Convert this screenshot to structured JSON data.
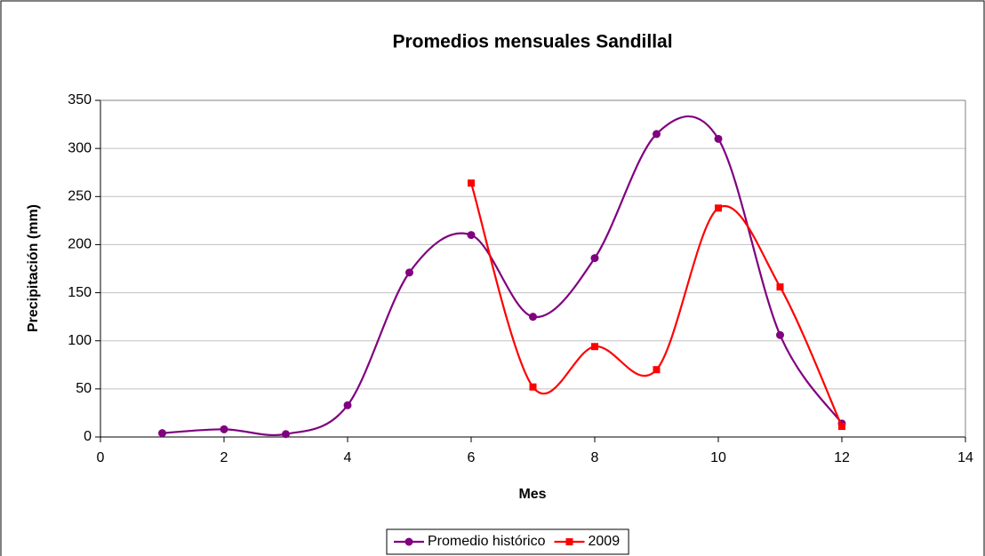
{
  "chart_data": {
    "type": "scatter-smooth",
    "title": "Promedios mensuales Sandillal",
    "xlabel": "Mes",
    "ylabel": "Precipitación (mm)",
    "xlim": [
      0,
      14
    ],
    "xticks": [
      0,
      2,
      4,
      6,
      8,
      10,
      12,
      14
    ],
    "ylim": [
      0,
      350
    ],
    "yticks": [
      0,
      50,
      100,
      150,
      200,
      250,
      300,
      350
    ],
    "grid": true,
    "legend": "bottom",
    "series": [
      {
        "name": "Promedio histórico",
        "color": "#800080",
        "marker": "circle",
        "x": [
          1,
          2,
          3,
          4,
          5,
          6,
          7,
          8,
          9,
          10,
          11,
          12
        ],
        "values": [
          4,
          8,
          3,
          33,
          171,
          210,
          125,
          186,
          315,
          310,
          106,
          14
        ]
      },
      {
        "name": "2009",
        "color": "#ff0000",
        "marker": "square",
        "x": [
          6,
          7,
          8,
          9,
          10,
          11,
          12
        ],
        "values": [
          264,
          52,
          94,
          70,
          238,
          156,
          11
        ]
      }
    ]
  }
}
